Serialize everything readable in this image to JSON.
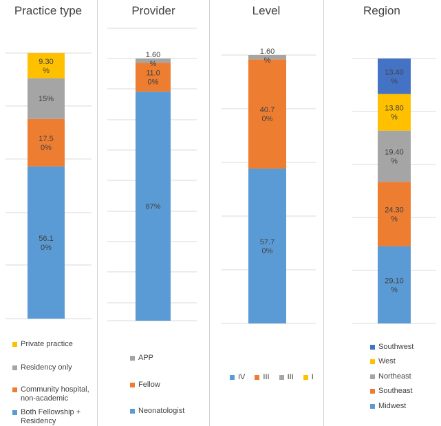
{
  "chart_data": [
    {
      "type": "bar",
      "title": "Practice type",
      "stacked": true,
      "grid": true,
      "legend_position": "bottom",
      "series": [
        {
          "name": "Both Fellowship + Residency",
          "value": 56.1,
          "color": "#5B9BD5",
          "label_lines": [
            "56.1",
            "0%"
          ]
        },
        {
          "name": "Community hospital, non-academic",
          "value": 17.5,
          "color": "#ED7D31",
          "label_lines": [
            "17.5",
            "0%"
          ]
        },
        {
          "name": "Residency only",
          "value": 15,
          "color": "#A5A5A5",
          "label_lines": [
            "15%"
          ]
        },
        {
          "name": "Private practice",
          "value": 9.3,
          "color": "#FFC000",
          "label_lines": [
            "9.30",
            "%"
          ]
        }
      ],
      "legend_order": [
        3,
        2,
        1,
        0
      ]
    },
    {
      "type": "bar",
      "title": "Provider",
      "stacked": true,
      "grid": true,
      "legend_position": "bottom",
      "series": [
        {
          "name": "Neonatologist",
          "value": 87,
          "color": "#5B9BD5",
          "label_lines": [
            "87%"
          ]
        },
        {
          "name": "Fellow",
          "value": 11,
          "color": "#ED7D31",
          "label_lines": [
            "11.0",
            "0%"
          ]
        },
        {
          "name": "APP",
          "value": 1.6,
          "color": "#A5A5A5",
          "label_lines": [
            "1.60",
            "%"
          ]
        }
      ],
      "legend_order": [
        2,
        1,
        0
      ]
    },
    {
      "type": "bar",
      "title": "Level",
      "stacked": true,
      "grid": true,
      "legend_position": "bottom",
      "series": [
        {
          "name": "IV",
          "value": 57.7,
          "color": "#5B9BD5",
          "label_lines": [
            "57.7",
            "0%"
          ]
        },
        {
          "name": "III",
          "value": 40.7,
          "color": "#ED7D31",
          "label_lines": [
            "40.7",
            "0%"
          ]
        },
        {
          "name": "III",
          "value": 1.6,
          "color": "#A5A5A5",
          "label_lines": [
            "1.60",
            "%"
          ]
        },
        {
          "name": "I",
          "value": 0,
          "color": "#FFC000",
          "label_lines": []
        }
      ],
      "legend_order": [
        0,
        1,
        2,
        3
      ]
    },
    {
      "type": "bar",
      "title": "Region",
      "stacked": true,
      "grid": true,
      "legend_position": "bottom",
      "series": [
        {
          "name": "Midwest",
          "value": 29.1,
          "color": "#5B9BD5",
          "label_lines": [
            "29.10",
            "%"
          ]
        },
        {
          "name": "Southeast",
          "value": 24.3,
          "color": "#ED7D31",
          "label_lines": [
            "24.30",
            "%"
          ]
        },
        {
          "name": "Northeast",
          "value": 19.4,
          "color": "#A5A5A5",
          "label_lines": [
            "19.40",
            "%"
          ]
        },
        {
          "name": "West",
          "value": 13.8,
          "color": "#FFC000",
          "label_lines": [
            "13.80",
            "%"
          ]
        },
        {
          "name": "Southwest",
          "value": 13.4,
          "color": "#4472C4",
          "label_lines": [
            "13.40",
            "%"
          ]
        }
      ],
      "legend_order": [
        4,
        3,
        2,
        1,
        0
      ]
    }
  ]
}
